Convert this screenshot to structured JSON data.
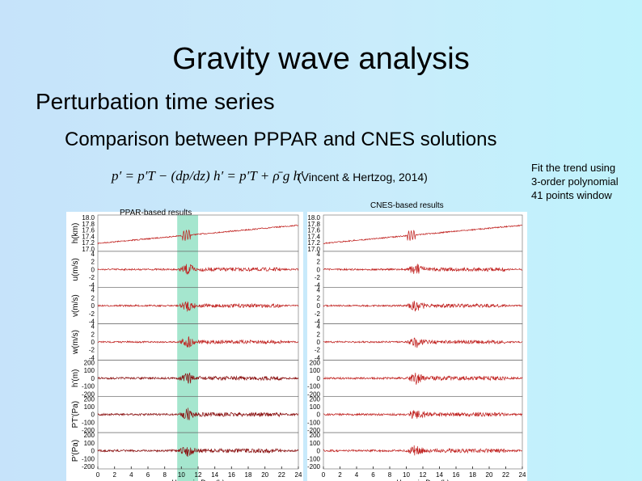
{
  "title": "Gravity wave analysis",
  "heading": "Perturbation time series",
  "subheading": "Comparison between PPPAR and CNES solutions",
  "equation": "p′ = p′T − (dp/dz) h′ = p′T + ρ̄ g h′",
  "citation": "(Vincent & Hertzog, 2014)",
  "note": [
    "Fit the trend using",
    "3-order polynomial",
    "41 points window"
  ],
  "panels": [
    {
      "title": "PPAR-based results"
    },
    {
      "title": "CNES-based results"
    }
  ],
  "rows": [
    {
      "label": "h(km)",
      "ticks": [
        "18.0",
        "17.8",
        "17.6",
        "17.4",
        "17.2",
        "17.0"
      ]
    },
    {
      "label": "u(m/s)",
      "ticks": [
        "4",
        "2",
        "0",
        "-2",
        "-4"
      ]
    },
    {
      "label": "v(m/s)",
      "ticks": [
        "4",
        "2",
        "0",
        "-2",
        "-4"
      ]
    },
    {
      "label": "w(m/s)",
      "ticks": [
        "4",
        "2",
        "0",
        "-2",
        "-4"
      ]
    },
    {
      "label": "h'(m)",
      "ticks": [
        "200",
        "100",
        "0",
        "-100",
        "-200"
      ]
    },
    {
      "label": "PT'(Pa)",
      "ticks": [
        "200",
        "100",
        "0",
        "-100",
        "-200"
      ]
    },
    {
      "label": "P'(Pa)",
      "ticks": [
        "200",
        "100",
        "0",
        "-100",
        "-200"
      ]
    }
  ],
  "xlim": [
    0,
    24
  ],
  "xticks": [
    0,
    2,
    4,
    6,
    8,
    10,
    12,
    14,
    16,
    18,
    20,
    22,
    24
  ],
  "xlabel": "Hours in Day (h)"
}
